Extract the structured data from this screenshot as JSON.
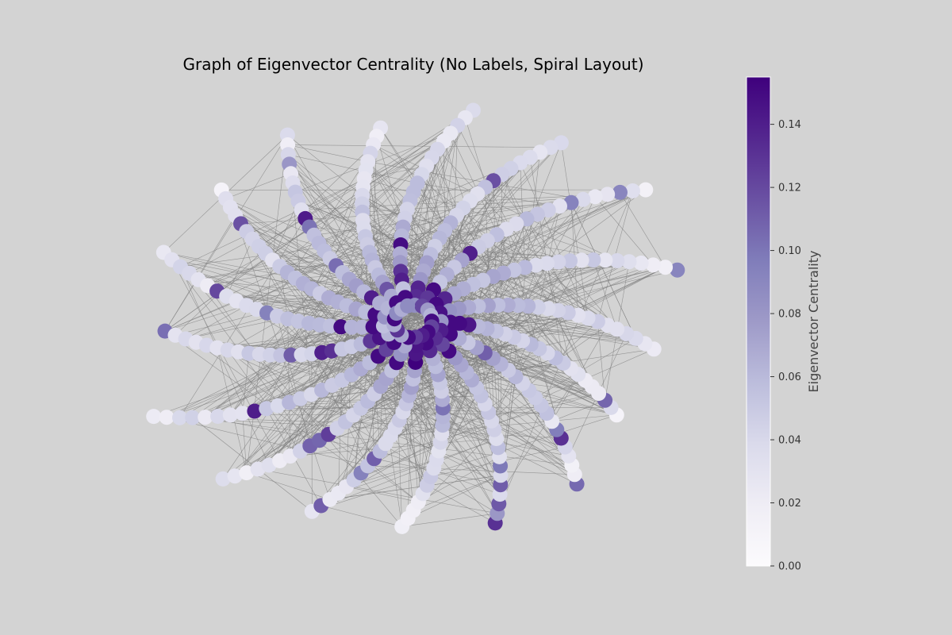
{
  "chart_data": {
    "type": "network-graph",
    "title": "Graph of Eigenvector Centrality (No Labels, Spiral Layout)",
    "layout": "spiral",
    "node_labels": false,
    "arms": 17,
    "nodes_per_arm": 24,
    "node_count": 408,
    "edge_color": "#808080",
    "node_colormap": "Purples",
    "colorbar": {
      "label": "Eigenvector Centrality",
      "range": [
        0,
        0.155
      ],
      "ticks": [
        0.0,
        0.02,
        0.04,
        0.06,
        0.08,
        0.1,
        0.12,
        0.14
      ],
      "tick_labels": [
        "0.00",
        "0.02",
        "0.04",
        "0.06",
        "0.08",
        "0.10",
        "0.12",
        "0.14"
      ],
      "color_stops": [
        "#fcfbfd",
        "#efedf5",
        "#dadaeb",
        "#bcbddc",
        "#9e9ac8",
        "#807dba",
        "#6a51a3",
        "#54278f",
        "#3f007d"
      ]
    }
  }
}
